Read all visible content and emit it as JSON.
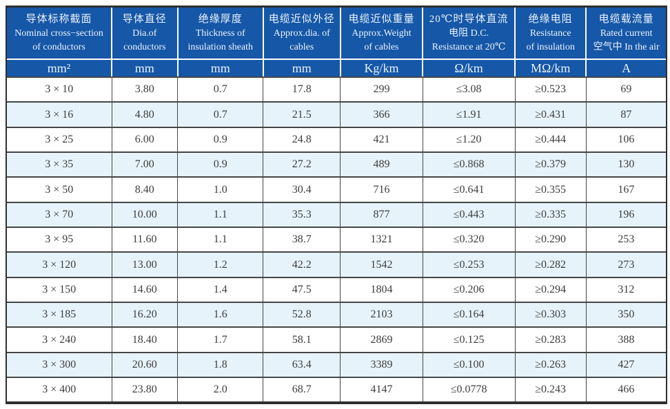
{
  "colors": {
    "header_bg": "#1657a7",
    "header_text": "#eaf3fc",
    "row_alt": "#e6f3fb",
    "grid": "#454545",
    "frame": "#2f2f2f"
  },
  "table": {
    "columns": [
      {
        "zh": "导体标称截面",
        "en1": "Nominal cross−section",
        "en2": "of conductors",
        "unit": "mm²"
      },
      {
        "zh": "导体直径",
        "en1": "Dia.of",
        "en2": "conductors",
        "unit": "mm"
      },
      {
        "zh": "绝缘厚度",
        "en1": "Thickness of",
        "en2": "insulation sheath",
        "unit": "mm"
      },
      {
        "zh": "电缆近似外径",
        "en1": "Approx.dia. of",
        "en2": "cables",
        "unit": "mm"
      },
      {
        "zh": "电缆近似重量",
        "en1": "Approx.Weight",
        "en2": "of cables",
        "unit": "Kg/km"
      },
      {
        "zh": "20℃时导体直流",
        "en1": "电阻 D.C.",
        "en2": "Resistance at 20℃",
        "unit": "Ω/km"
      },
      {
        "zh": "绝缘电阻",
        "en1": "Resistance",
        "en2": "of insulation",
        "unit": "MΩ/km"
      },
      {
        "zh": "电缆载流量",
        "en1": "Rated current",
        "en2": "空气中 In the air",
        "unit": "A"
      }
    ],
    "rows": [
      [
        "3 × 10",
        "3.80",
        "0.7",
        "17.8",
        "299",
        "≤3.08",
        "≥0.523",
        "69"
      ],
      [
        "3 × 16",
        "4.80",
        "0.7",
        "21.5",
        "366",
        "≤1.91",
        "≥0.431",
        "87"
      ],
      [
        "3 × 25",
        "6.00",
        "0.9",
        "24.8",
        "421",
        "≤1.20",
        "≥0.444",
        "106"
      ],
      [
        "3 × 35",
        "7.00",
        "0.9",
        "27.2",
        "489",
        "≤0.868",
        "≥0.379",
        "130"
      ],
      [
        "3 × 50",
        "8.40",
        "1.0",
        "30.4",
        "716",
        "≤0.641",
        "≥0.355",
        "167"
      ],
      [
        "3 × 70",
        "10.00",
        "1.1",
        "35.3",
        "877",
        "≤0.443",
        "≥0.335",
        "196"
      ],
      [
        "3 × 95",
        "11.60",
        "1.1",
        "38.7",
        "1321",
        "≤0.320",
        "≥0.290",
        "253"
      ],
      [
        "3 × 120",
        "13.00",
        "1.2",
        "42.2",
        "1542",
        "≤0.253",
        "≥0.282",
        "273"
      ],
      [
        "3 × 150",
        "14.60",
        "1.4",
        "47.5",
        "1804",
        "≤0.206",
        "≥0.294",
        "312"
      ],
      [
        "3 × 185",
        "16.20",
        "1.6",
        "52.8",
        "2103",
        "≤0.164",
        "≥0.303",
        "350"
      ],
      [
        "3 × 240",
        "18.40",
        "1.7",
        "58.1",
        "2869",
        "≤0.125",
        "≥0.283",
        "388"
      ],
      [
        "3 × 300",
        "20.60",
        "1.8",
        "63.4",
        "3389",
        "≤0.100",
        "≥0.263",
        "427"
      ],
      [
        "3 × 400",
        "23.80",
        "2.0",
        "68.7",
        "4147",
        "≤0.0778",
        "≥0.243",
        "466"
      ]
    ]
  }
}
